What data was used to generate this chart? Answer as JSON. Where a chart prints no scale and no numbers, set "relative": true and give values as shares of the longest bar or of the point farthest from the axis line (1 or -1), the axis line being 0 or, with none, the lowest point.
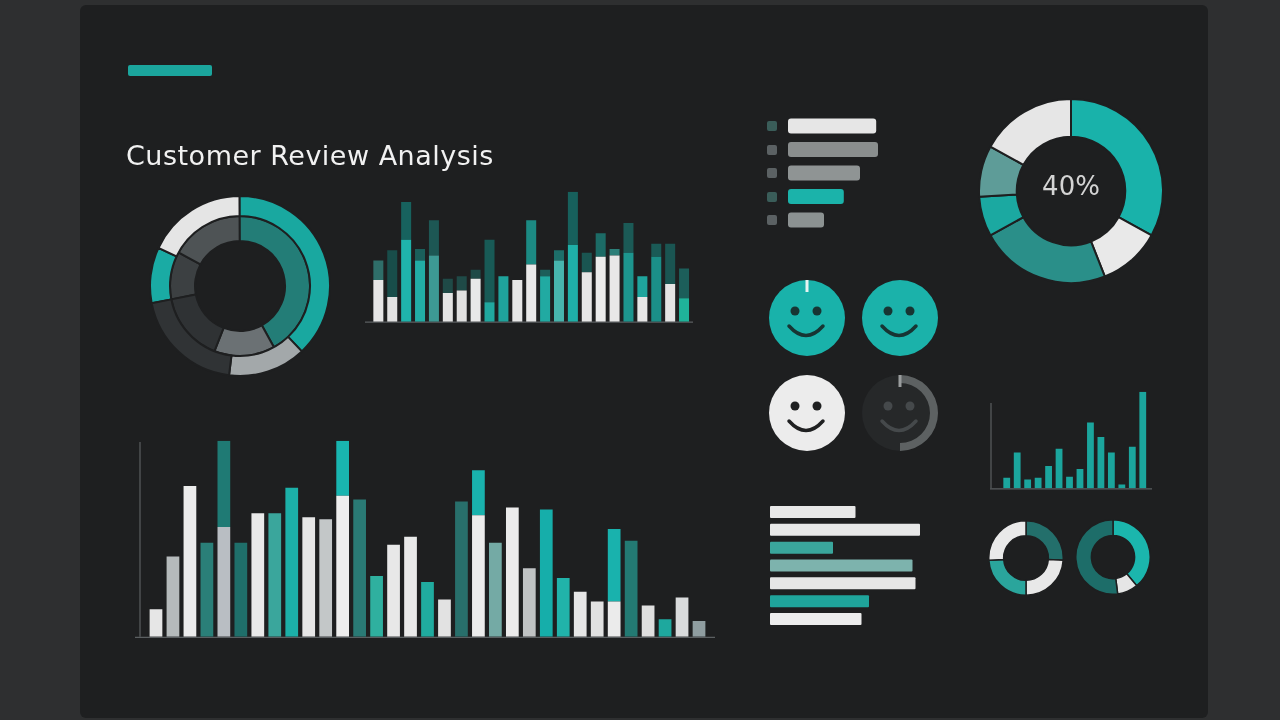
{
  "chart_data": [
    {
      "type": "donut",
      "title": "Customer Review Analysis",
      "categories": [
        null,
        null,
        null,
        null,
        null
      ],
      "series": [
        {
          "values": [
            10,
            18,
            38,
            14,
            20
          ],
          "colors": [
            "#1aaba4",
            "#e5e5e5",
            "#19a8a0",
            "#a3a8aa",
            "#303335"
          ]
        },
        {
          "values": [
            11,
            17,
            42,
            14,
            16
          ],
          "colors": [
            "#3c4042",
            "#4e5355",
            "#237d77",
            "#6b7174",
            "#2f3234"
          ]
        }
      ]
    },
    {
      "type": "bar",
      "relative": true,
      "stacked": true,
      "categories": [
        null,
        null,
        null,
        null,
        null,
        null,
        null,
        null,
        null,
        null,
        null,
        null,
        null,
        null,
        null,
        null,
        null,
        null,
        null,
        null,
        null,
        null,
        null
      ],
      "series": [
        {
          "values": [
            0.32,
            0.19,
            0.63,
            0.47,
            0.51,
            0.22,
            0.24,
            0.33,
            0.15,
            0.35,
            0.32,
            0.44,
            0.35,
            0.47,
            0.59,
            0.38,
            0.5,
            0.51,
            0.53,
            0.19,
            0.5,
            0.29,
            0.18
          ],
          "colors": [
            "#e6e6e6",
            "#e2e2e2",
            "#1fb3ab",
            "#22ada5",
            "#3d9994",
            "#e4e4e4",
            "#e0e0e0",
            "#e8e8e8",
            "#20a89f",
            "#1fa39c",
            "#e6e6e6",
            "#e9e9e9",
            "#21aaa2",
            "#47b5ae",
            "#1fb0a8",
            "#e6e6e6",
            "#ebebeb",
            "#e8e8e8",
            "#1d958e",
            "#e6e6e6",
            "#1b8f88",
            "#e4e4e4",
            "#1fb39a"
          ]
        },
        {
          "values": [
            0.15,
            0.36,
            0.29,
            0.09,
            0.27,
            0.11,
            0.11,
            0.07,
            0.48,
            null,
            null,
            0.34,
            0.05,
            0.08,
            0.41,
            0.15,
            0.18,
            0.05,
            0.23,
            0.16,
            0.1,
            0.31,
            0.23
          ],
          "colors": [
            "#2f6e69",
            "#184d4a",
            "#17625e",
            "#1a5f5b",
            "#1d5754",
            "#1f4a47",
            "#1f4a47",
            "#1f4a47",
            "#185a56",
            null,
            null,
            "#1c8a83",
            "#1d5e5a",
            "#1d6e69",
            "#17605c",
            "#1a5551",
            "#1c6b66",
            "#2c7f79",
            "#1b5a56",
            "#1fa59d",
            "#1a5a56",
            "#1a5552",
            "#1c5e5a"
          ]
        }
      ]
    },
    {
      "type": "bar",
      "relative": true,
      "stacked": true,
      "categories": [
        null,
        null,
        null,
        null,
        null,
        null,
        null,
        null,
        null,
        null,
        null,
        null,
        null,
        null,
        null,
        null,
        null,
        null,
        null,
        null,
        null,
        null,
        null,
        null,
        null,
        null,
        null,
        null,
        null,
        null,
        null,
        null,
        null
      ],
      "series": [
        {
          "values": [
            0.14,
            0.41,
            0.77,
            0.48,
            0.56,
            0.48,
            0.63,
            0.63,
            0.76,
            0.61,
            0.6,
            0.72,
            0.7,
            0.31,
            0.47,
            0.51,
            0.28,
            0.19,
            0.69,
            0.62,
            0.48,
            0.66,
            0.35,
            0.65,
            0.3,
            0.23,
            0.18,
            0.18,
            0.49,
            0.16,
            0.09,
            0.2,
            0.08
          ],
          "colors": [
            "#e6e6e6",
            "#b5babb",
            "#ececec",
            "#2a7f78",
            "#b9bec3",
            "#1f6f6a",
            "#e9e9e9",
            "#3aa69c",
            "#1cb0a8",
            "#e6e6e6",
            "#c3c7c8",
            "#eeeeee",
            "#2a7a75",
            "#2fb09f",
            "#e8e8e8",
            "#e9e9e9",
            "#20ab9f",
            "#e2e2e2",
            "#286f6b",
            "#ececec",
            "#74aaa5",
            "#ebebeb",
            "#c0c3c4",
            "#16aeaa",
            "#21b3aa",
            "#e6e6e6",
            "#e1e1e1",
            "#ebebeb",
            "#237a73",
            "#dfdfdf",
            "#1ea89e",
            "#d9dbdc",
            "#8f9da0"
          ]
        },
        {
          "values": [
            null,
            null,
            null,
            null,
            0.44,
            null,
            null,
            null,
            null,
            null,
            null,
            0.28,
            null,
            null,
            null,
            null,
            null,
            null,
            null,
            0.23,
            null,
            null,
            null,
            null,
            null,
            null,
            null,
            0.37,
            null,
            null,
            null,
            null,
            null
          ],
          "colors": [
            null,
            null,
            null,
            null,
            "#1f7a74",
            null,
            null,
            null,
            null,
            null,
            null,
            "#19b5b0",
            null,
            null,
            null,
            null,
            null,
            null,
            null,
            "#19b2ad",
            null,
            null,
            null,
            null,
            null,
            null,
            null,
            "#19b2ad",
            null,
            null,
            null,
            null,
            null
          ]
        }
      ]
    },
    {
      "type": "bar",
      "orientation": "horizontal",
      "relative": true,
      "categories": [
        null,
        null,
        null,
        null,
        null
      ],
      "values": [
        0.98,
        1,
        0.8,
        0.62,
        0.4
      ],
      "colors": [
        "#e6e6e6",
        "#8a8e8e",
        "#8f9494",
        "#1bb3aa",
        "#8c9292"
      ]
    },
    {
      "type": "donut",
      "categories": [
        null,
        null,
        null,
        null,
        null,
        null
      ],
      "values": [
        33,
        11,
        23,
        7,
        9,
        17
      ],
      "colors": [
        "#19b2aa",
        "#e9e9e9",
        "#2a8f89",
        "#1ba9a1",
        "#5e9c98",
        "#e6e6e6"
      ],
      "annotations": [
        "40%"
      ]
    },
    {
      "type": "bar",
      "relative": true,
      "categories": [
        null,
        null,
        null,
        null,
        null,
        null,
        null,
        null,
        null,
        null,
        null,
        null,
        null,
        null
      ],
      "values": [
        0.11,
        0.37,
        0.09,
        0.11,
        0.23,
        0.41,
        0.12,
        0.2,
        0.68,
        0.53,
        0.37,
        0.04,
        0.43,
        1
      ],
      "color": "#1ba59d"
    },
    {
      "type": "bar",
      "orientation": "horizontal",
      "relative": true,
      "categories": [
        null,
        null,
        null,
        null,
        null,
        null,
        null
      ],
      "values": [
        0.57,
        1,
        0.42,
        0.95,
        0.97,
        0.66,
        0.61
      ],
      "colors": [
        "#e8e8e8",
        "#e8e8e8",
        "#3aa69c",
        "#7db3ad",
        "#e6e6e6",
        "#1fa49b",
        "#ececec"
      ]
    },
    {
      "type": "donut",
      "categories": [
        null,
        null,
        null,
        null
      ],
      "values": [
        26,
        24,
        24,
        26
      ],
      "colors": [
        "#236f6b",
        "#e8e8e8",
        "#2aa59c",
        "#e9e9e9"
      ]
    },
    {
      "type": "donut",
      "categories": [
        null,
        null,
        null
      ],
      "values": [
        39,
        9,
        52
      ],
      "colors": [
        "#1bb6ad",
        "#e6e6e6",
        "#1d6d69"
      ]
    }
  ]
}
